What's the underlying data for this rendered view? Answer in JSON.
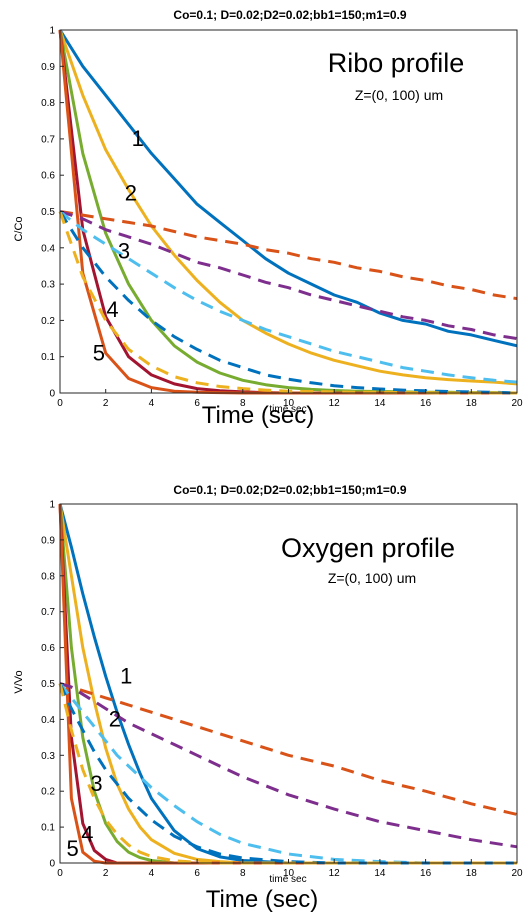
{
  "chart_data": [
    {
      "type": "line",
      "title": "Co=0.1; D=0.02;D2=0.02;bb1=150;m1=0.9",
      "ylabel": "C/Co",
      "xlabel_small": "time sec",
      "xlabel_large": "Time (sec)",
      "annotation_title": "Ribo profile",
      "annotation_subtitle": "Z=(0, 100) um",
      "xlim": [
        0,
        20
      ],
      "ylim": [
        0,
        1
      ],
      "x_ticks": [
        "0",
        "2",
        "4",
        "6",
        "8",
        "10",
        "12",
        "14",
        "16",
        "18",
        "20"
      ],
      "y_ticks": [
        "0",
        "0.1",
        "0.2",
        "0.3",
        "0.4",
        "0.5",
        "0.6",
        "0.7",
        "0.8",
        "0.9",
        "1"
      ],
      "grid": false,
      "x": [
        0,
        1,
        2,
        3,
        4,
        5,
        6,
        7,
        8,
        9,
        10,
        11,
        12,
        13,
        14,
        15,
        16,
        17,
        18,
        19,
        20
      ],
      "series": [
        {
          "color": "#0072BD",
          "style": "solid",
          "values": [
            1.0,
            0.9,
            0.82,
            0.74,
            0.66,
            0.59,
            0.52,
            0.47,
            0.42,
            0.37,
            0.33,
            0.3,
            0.27,
            0.25,
            0.22,
            0.2,
            0.19,
            0.17,
            0.16,
            0.145,
            0.13
          ]
        },
        {
          "color": "#EDB120",
          "style": "solid",
          "values": [
            1.0,
            0.82,
            0.67,
            0.56,
            0.46,
            0.38,
            0.31,
            0.25,
            0.2,
            0.165,
            0.135,
            0.11,
            0.09,
            0.075,
            0.06,
            0.05,
            0.042,
            0.037,
            0.033,
            0.03,
            0.025
          ]
        },
        {
          "color": "#77AC30",
          "style": "solid",
          "values": [
            1.0,
            0.66,
            0.44,
            0.3,
            0.2,
            0.13,
            0.085,
            0.055,
            0.035,
            0.023,
            0.015,
            0.01,
            0.007,
            0.005,
            0.004,
            0.003,
            0.002,
            0.002,
            0.001,
            0.001,
            0.0
          ]
        },
        {
          "color": "#A2142F",
          "style": "solid",
          "values": [
            1.0,
            0.45,
            0.21,
            0.1,
            0.05,
            0.025,
            0.012,
            0.006,
            0.003,
            0.001,
            0.0,
            0.0,
            0.0,
            0.0,
            0.0,
            0.0,
            0.0,
            0.0,
            0.0,
            0.0,
            0.0
          ]
        },
        {
          "color": "#D95319",
          "style": "solid",
          "values": [
            1.0,
            0.33,
            0.11,
            0.04,
            0.015,
            0.005,
            0.002,
            0.001,
            0.0,
            0.0,
            0.0,
            0.0,
            0.0,
            0.0,
            0.0,
            0.0,
            0.0,
            0.0,
            0.0,
            0.0,
            0.0
          ]
        },
        {
          "color": "#D95319",
          "style": "dashed",
          "values": [
            0.5,
            0.49,
            0.48,
            0.47,
            0.46,
            0.445,
            0.43,
            0.42,
            0.41,
            0.395,
            0.385,
            0.37,
            0.36,
            0.345,
            0.335,
            0.32,
            0.31,
            0.295,
            0.285,
            0.27,
            0.26
          ]
        },
        {
          "color": "#7E2F8E",
          "style": "dashed",
          "values": [
            0.5,
            0.48,
            0.45,
            0.43,
            0.41,
            0.385,
            0.36,
            0.345,
            0.325,
            0.305,
            0.29,
            0.27,
            0.255,
            0.24,
            0.225,
            0.21,
            0.2,
            0.185,
            0.175,
            0.16,
            0.15
          ]
        },
        {
          "color": "#4DBEEE",
          "style": "dashed",
          "values": [
            0.5,
            0.45,
            0.41,
            0.37,
            0.33,
            0.29,
            0.255,
            0.225,
            0.2,
            0.175,
            0.155,
            0.135,
            0.115,
            0.1,
            0.085,
            0.07,
            0.06,
            0.05,
            0.042,
            0.035,
            0.03
          ]
        },
        {
          "color": "#0072BD",
          "style": "dashed",
          "values": [
            0.5,
            0.4,
            0.32,
            0.255,
            0.2,
            0.155,
            0.12,
            0.09,
            0.07,
            0.05,
            0.038,
            0.028,
            0.02,
            0.015,
            0.011,
            0.008,
            0.006,
            0.004,
            0.003,
            0.002,
            0.0
          ]
        },
        {
          "color": "#EDB120",
          "style": "dashed",
          "values": [
            0.5,
            0.32,
            0.2,
            0.12,
            0.075,
            0.045,
            0.028,
            0.018,
            0.012,
            0.008,
            0.005,
            0.004,
            0.003,
            0.002,
            0.002,
            0.001,
            0.001,
            0.0,
            0.0,
            0.0,
            0.0
          ]
        }
      ],
      "curve_labels": [
        {
          "text": "1",
          "x": 3.4,
          "y": 0.68
        },
        {
          "text": "2",
          "x": 3.1,
          "y": 0.53
        },
        {
          "text": "3",
          "x": 2.8,
          "y": 0.37
        },
        {
          "text": "4",
          "x": 2.3,
          "y": 0.21
        },
        {
          "text": "5",
          "x": 1.7,
          "y": 0.09
        }
      ]
    },
    {
      "type": "line",
      "title": "Co=0.1; D=0.02;D2=0.02;bb1=150;m1=0.9",
      "ylabel": "V/Vo",
      "xlabel_small": "time sec",
      "xlabel_large": "Time (sec)",
      "annotation_title": "Oxygen profile",
      "annotation_subtitle": "Z=(0, 100) um",
      "xlim": [
        0,
        20
      ],
      "ylim": [
        0,
        1
      ],
      "x_ticks": [
        "0",
        "2",
        "4",
        "6",
        "8",
        "10",
        "12",
        "14",
        "16",
        "18",
        "20"
      ],
      "y_ticks": [
        "0",
        "0.1",
        "0.2",
        "0.3",
        "0.4",
        "0.5",
        "0.6",
        "0.7",
        "0.8",
        "0.9",
        "1"
      ],
      "grid": false,
      "x": [
        0,
        0.5,
        1,
        1.5,
        2,
        2.5,
        3,
        3.5,
        4,
        5,
        6,
        7,
        8,
        10,
        12,
        14,
        16,
        18,
        20
      ],
      "series": [
        {
          "color": "#0072BD",
          "style": "solid",
          "values": [
            1.0,
            0.88,
            0.75,
            0.63,
            0.52,
            0.42,
            0.33,
            0.25,
            0.18,
            0.09,
            0.04,
            0.017,
            0.007,
            0.0,
            0.0,
            0.0,
            0.0,
            0.0,
            0.0
          ]
        },
        {
          "color": "#EDB120",
          "style": "solid",
          "values": [
            1.0,
            0.8,
            0.6,
            0.45,
            0.32,
            0.22,
            0.15,
            0.1,
            0.065,
            0.027,
            0.01,
            0.004,
            0.0,
            0.0,
            0.0,
            0.0,
            0.0,
            0.0,
            0.0
          ]
        },
        {
          "color": "#77AC30",
          "style": "solid",
          "values": [
            1.0,
            0.6,
            0.35,
            0.2,
            0.11,
            0.06,
            0.03,
            0.015,
            0.007,
            0.0,
            0.0,
            0.0,
            0.0,
            0.0,
            0.0,
            0.0,
            0.0,
            0.0,
            0.0
          ]
        },
        {
          "color": "#A2142F",
          "style": "solid",
          "values": [
            1.0,
            0.35,
            0.11,
            0.035,
            0.01,
            0.0,
            0.0,
            0.0,
            0.0,
            0.0,
            0.0,
            0.0,
            0.0,
            0.0,
            0.0,
            0.0,
            0.0,
            0.0,
            0.0
          ]
        },
        {
          "color": "#D95319",
          "style": "solid",
          "values": [
            1.0,
            0.18,
            0.03,
            0.005,
            0.0,
            0.0,
            0.0,
            0.0,
            0.0,
            0.0,
            0.0,
            0.0,
            0.0,
            0.0,
            0.0,
            0.0,
            0.0,
            0.0,
            0.0
          ]
        },
        {
          "color": "#D95319",
          "style": "dashed",
          "values": [
            0.5,
            0.49,
            0.48,
            0.47,
            0.46,
            0.45,
            0.44,
            0.43,
            0.42,
            0.4,
            0.38,
            0.36,
            0.34,
            0.3,
            0.27,
            0.23,
            0.2,
            0.165,
            0.135
          ]
        },
        {
          "color": "#7E2F8E",
          "style": "dashed",
          "values": [
            0.5,
            0.49,
            0.47,
            0.45,
            0.43,
            0.41,
            0.39,
            0.375,
            0.36,
            0.33,
            0.3,
            0.27,
            0.24,
            0.19,
            0.15,
            0.115,
            0.09,
            0.065,
            0.045
          ]
        },
        {
          "color": "#4DBEEE",
          "style": "dashed",
          "values": [
            0.5,
            0.46,
            0.42,
            0.38,
            0.34,
            0.3,
            0.27,
            0.24,
            0.21,
            0.16,
            0.115,
            0.08,
            0.055,
            0.025,
            0.01,
            0.004,
            0.0,
            0.0,
            0.0
          ]
        },
        {
          "color": "#0072BD",
          "style": "dashed",
          "values": [
            0.5,
            0.43,
            0.37,
            0.31,
            0.26,
            0.22,
            0.18,
            0.15,
            0.12,
            0.075,
            0.045,
            0.025,
            0.014,
            0.004,
            0.0,
            0.0,
            0.0,
            0.0,
            0.0
          ]
        },
        {
          "color": "#EDB120",
          "style": "dashed",
          "values": [
            0.5,
            0.37,
            0.26,
            0.18,
            0.12,
            0.08,
            0.05,
            0.03,
            0.018,
            0.006,
            0.002,
            0.0,
            0.0,
            0.0,
            0.0,
            0.0,
            0.0,
            0.0,
            0.0
          ]
        }
      ],
      "curve_labels": [
        {
          "text": "1",
          "x": 2.9,
          "y": 0.5
        },
        {
          "text": "2",
          "x": 2.4,
          "y": 0.38
        },
        {
          "text": "3",
          "x": 1.6,
          "y": 0.2
        },
        {
          "text": "4",
          "x": 1.2,
          "y": 0.06
        },
        {
          "text": "5",
          "x": 0.55,
          "y": 0.02
        }
      ]
    }
  ]
}
